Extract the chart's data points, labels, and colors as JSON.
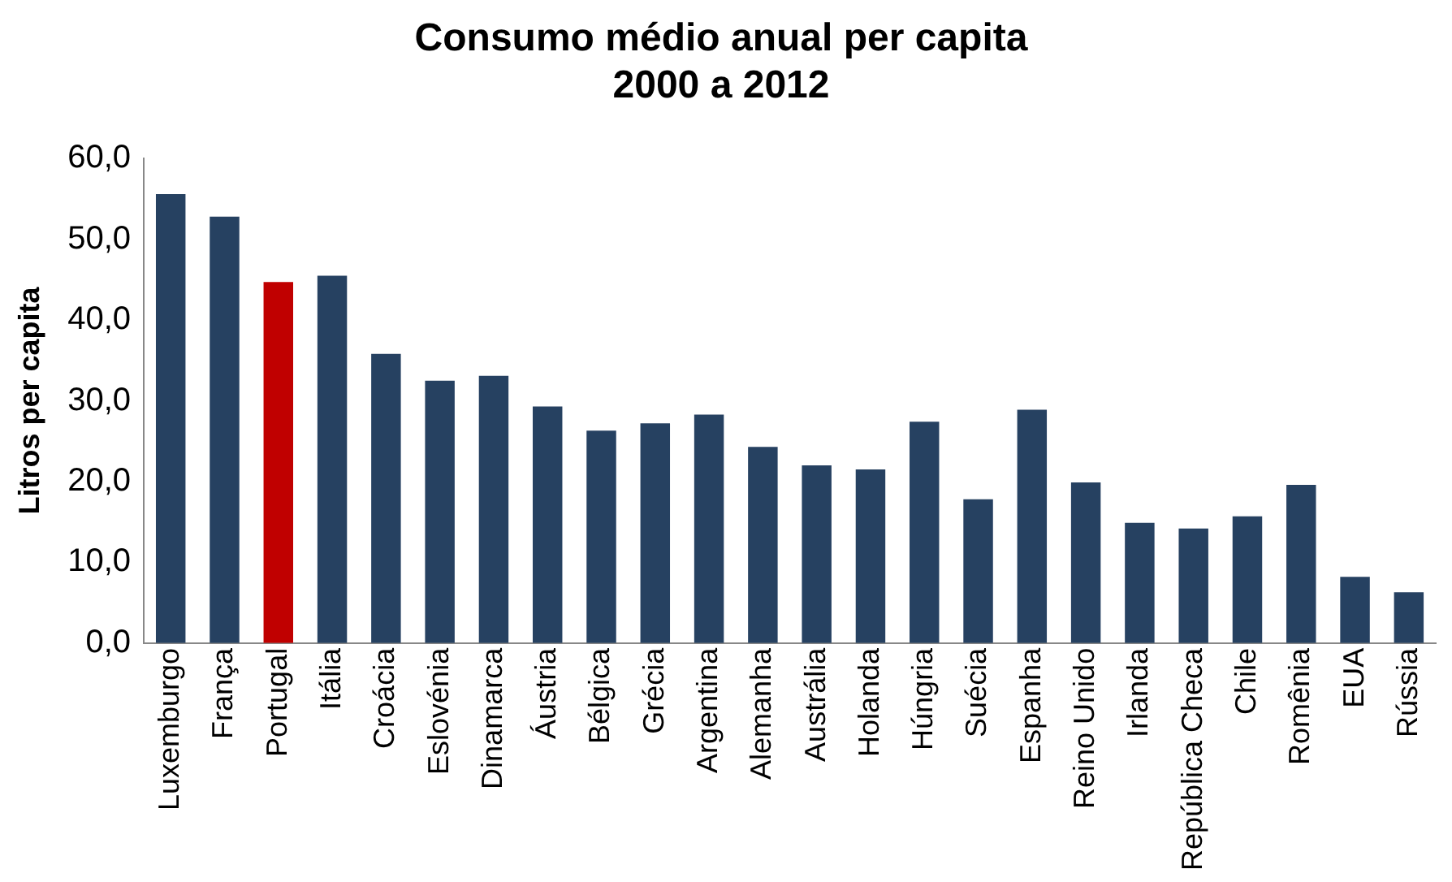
{
  "chart_data": {
    "type": "bar",
    "title": "Consumo médio anual per capita",
    "subtitle": "2000 a 2012",
    "ylabel": "Litros per capita",
    "categories": [
      "Luxemburgo",
      "França",
      "Portugal",
      "Itália",
      "Croácia",
      "Eslovénia",
      "Dinamarca",
      "Áustria",
      "Bélgica",
      "Grécia",
      "Argentina",
      "Alemanha",
      "Austrália",
      "Holanda",
      "Húngria",
      "Suécia",
      "Espanha",
      "Reino Unido",
      "Irlanda",
      "República Checa",
      "Chile",
      "Romênia",
      "EUA",
      "Rússia"
    ],
    "values": [
      55.6,
      52.8,
      44.7,
      45.5,
      35.8,
      32.5,
      33.1,
      29.3,
      26.3,
      27.2,
      28.3,
      24.3,
      22.0,
      21.5,
      27.4,
      17.8,
      28.9,
      19.9,
      14.9,
      14.2,
      15.7,
      19.6,
      8.2,
      6.3
    ],
    "colors": [
      "#264161",
      "#264161",
      "#c00000",
      "#264161",
      "#264161",
      "#264161",
      "#264161",
      "#264161",
      "#264161",
      "#264161",
      "#264161",
      "#264161",
      "#264161",
      "#264161",
      "#264161",
      "#264161",
      "#264161",
      "#264161",
      "#264161",
      "#264161",
      "#264161",
      "#264161",
      "#264161",
      "#264161"
    ],
    "ylim": [
      0,
      60
    ],
    "yticks": [
      {
        "value": 0,
        "label": "0,0"
      },
      {
        "value": 10,
        "label": "10,0"
      },
      {
        "value": 20,
        "label": "20,0"
      },
      {
        "value": 30,
        "label": "30,0"
      },
      {
        "value": 40,
        "label": "40,0"
      },
      {
        "value": 50,
        "label": "50,0"
      },
      {
        "value": 60,
        "label": "60,0"
      }
    ],
    "grid": false,
    "legend": false
  }
}
